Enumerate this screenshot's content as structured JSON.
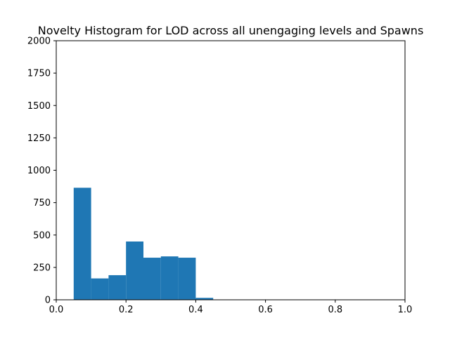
{
  "chart_data": {
    "type": "bar",
    "title": "Novelty Histogram for LOD across all unengaging levels and Spawns",
    "xlabel": "",
    "ylabel": "",
    "xlim": [
      0,
      1.0
    ],
    "ylim": [
      0,
      2000
    ],
    "grid": false,
    "bar_color": "#1f77b4",
    "bins": [
      {
        "x0": 0.05,
        "x1": 0.1,
        "value": 865
      },
      {
        "x0": 0.1,
        "x1": 0.15,
        "value": 165
      },
      {
        "x0": 0.15,
        "x1": 0.2,
        "value": 190
      },
      {
        "x0": 0.2,
        "x1": 0.25,
        "value": 450
      },
      {
        "x0": 0.25,
        "x1": 0.3,
        "value": 325
      },
      {
        "x0": 0.3,
        "x1": 0.35,
        "value": 335
      },
      {
        "x0": 0.35,
        "x1": 0.4,
        "value": 325
      },
      {
        "x0": 0.4,
        "x1": 0.45,
        "value": 15
      }
    ],
    "x_ticks": [
      {
        "value": 0.0,
        "label": "0.0"
      },
      {
        "value": 0.2,
        "label": "0.2"
      },
      {
        "value": 0.4,
        "label": "0.4"
      },
      {
        "value": 0.6,
        "label": "0.6"
      },
      {
        "value": 0.8,
        "label": "0.8"
      },
      {
        "value": 1.0,
        "label": "1.0"
      }
    ],
    "y_ticks": [
      {
        "value": 0,
        "label": "0"
      },
      {
        "value": 250,
        "label": "250"
      },
      {
        "value": 500,
        "label": "500"
      },
      {
        "value": 750,
        "label": "750"
      },
      {
        "value": 1000,
        "label": "1000"
      },
      {
        "value": 1250,
        "label": "1250"
      },
      {
        "value": 1500,
        "label": "1500"
      },
      {
        "value": 1750,
        "label": "1750"
      },
      {
        "value": 2000,
        "label": "2000"
      }
    ]
  }
}
